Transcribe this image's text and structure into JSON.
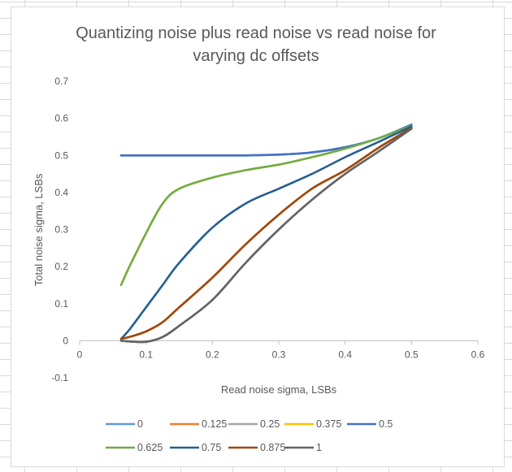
{
  "chart_data": {
    "type": "line",
    "title_lines": [
      "Quantizing noise plus read noise vs read noise for",
      "varying dc offsets"
    ],
    "xlabel": "Read noise sigma, LSBs",
    "ylabel": "Total noise sigma, LSBs",
    "xlim": [
      0,
      0.6
    ],
    "ylim": [
      -0.1,
      0.7
    ],
    "xticks": [
      0,
      0.1,
      0.2,
      0.3,
      0.4,
      0.5,
      0.6
    ],
    "xtick_labels": [
      "0",
      "0.1",
      "0.2",
      "0.3",
      "0.4",
      "0.5",
      "0.6"
    ],
    "yticks": [
      -0.1,
      0,
      0.1,
      0.2,
      0.3,
      0.4,
      0.5,
      0.6,
      0.7
    ],
    "ytick_labels": [
      "-0.1",
      "0",
      "0.1",
      "0.2",
      "0.3",
      "0.4",
      "0.5",
      "0.6",
      "0.7"
    ],
    "grid": false,
    "legend_position": "bottom",
    "series": [
      {
        "name": "0",
        "color": "#5b9bd5",
        "x": [
          0.0625,
          0.075,
          0.1,
          0.125,
          0.15,
          0.2,
          0.25,
          0.3,
          0.35,
          0.4,
          0.45,
          0.5
        ],
        "y": [
          0.5,
          0.5,
          0.5,
          0.5,
          0.5,
          0.5,
          0.5,
          0.502,
          0.508,
          0.522,
          0.546,
          0.583
        ]
      },
      {
        "name": "0.125",
        "color": "#ed7d31",
        "x": [
          0.0625,
          0.075,
          0.1,
          0.125,
          0.15,
          0.2,
          0.25,
          0.3,
          0.35,
          0.4,
          0.45,
          0.5
        ],
        "y": [
          0.005,
          0.01,
          0.025,
          0.05,
          0.09,
          0.17,
          0.26,
          0.34,
          0.41,
          0.46,
          0.52,
          0.574
        ]
      },
      {
        "name": "0.25",
        "color": "#a5a5a5",
        "x": [
          0.0625,
          0.075,
          0.1,
          0.125,
          0.15,
          0.2,
          0.25,
          0.3,
          0.35,
          0.4,
          0.45,
          0.5
        ],
        "y": [
          0.0,
          -0.002,
          -0.003,
          0.01,
          0.04,
          0.11,
          0.21,
          0.3,
          0.38,
          0.45,
          0.51,
          0.572
        ]
      },
      {
        "name": "0.375",
        "color": "#ffc000",
        "x": [
          0.0625,
          0.075,
          0.1,
          0.125,
          0.15,
          0.2,
          0.25,
          0.3,
          0.35,
          0.4,
          0.45,
          0.5
        ],
        "y": [
          0.15,
          0.2,
          0.29,
          0.37,
          0.41,
          0.44,
          0.46,
          0.475,
          0.495,
          0.518,
          0.546,
          0.58
        ]
      },
      {
        "name": "0.5",
        "color": "#4472c4",
        "x": [
          0.0625,
          0.075,
          0.1,
          0.125,
          0.15,
          0.2,
          0.25,
          0.3,
          0.35,
          0.4,
          0.45,
          0.5
        ],
        "y": [
          0.5,
          0.5,
          0.5,
          0.5,
          0.5,
          0.5,
          0.5,
          0.502,
          0.508,
          0.522,
          0.546,
          0.583
        ]
      },
      {
        "name": "0.625",
        "color": "#70ad47",
        "x": [
          0.0625,
          0.075,
          0.1,
          0.125,
          0.15,
          0.2,
          0.25,
          0.3,
          0.35,
          0.4,
          0.45,
          0.5
        ],
        "y": [
          0.15,
          0.2,
          0.29,
          0.37,
          0.41,
          0.44,
          0.46,
          0.475,
          0.495,
          0.518,
          0.546,
          0.58
        ]
      },
      {
        "name": "0.75",
        "color": "#255e91",
        "x": [
          0.0625,
          0.075,
          0.1,
          0.125,
          0.15,
          0.2,
          0.25,
          0.3,
          0.35,
          0.4,
          0.45,
          0.5
        ],
        "y": [
          0.005,
          0.03,
          0.09,
          0.15,
          0.21,
          0.305,
          0.37,
          0.41,
          0.45,
          0.495,
          0.536,
          0.578
        ]
      },
      {
        "name": "0.875",
        "color": "#9e480e",
        "x": [
          0.0625,
          0.075,
          0.1,
          0.125,
          0.15,
          0.2,
          0.25,
          0.3,
          0.35,
          0.4,
          0.45,
          0.5
        ],
        "y": [
          0.005,
          0.01,
          0.025,
          0.05,
          0.09,
          0.17,
          0.26,
          0.34,
          0.41,
          0.46,
          0.52,
          0.574
        ]
      },
      {
        "name": "1",
        "color": "#636363",
        "x": [
          0.0625,
          0.075,
          0.1,
          0.125,
          0.15,
          0.2,
          0.25,
          0.3,
          0.35,
          0.4,
          0.45,
          0.5
        ],
        "y": [
          0.0,
          -0.002,
          -0.003,
          0.01,
          0.04,
          0.11,
          0.21,
          0.3,
          0.38,
          0.45,
          0.51,
          0.572
        ]
      }
    ]
  }
}
